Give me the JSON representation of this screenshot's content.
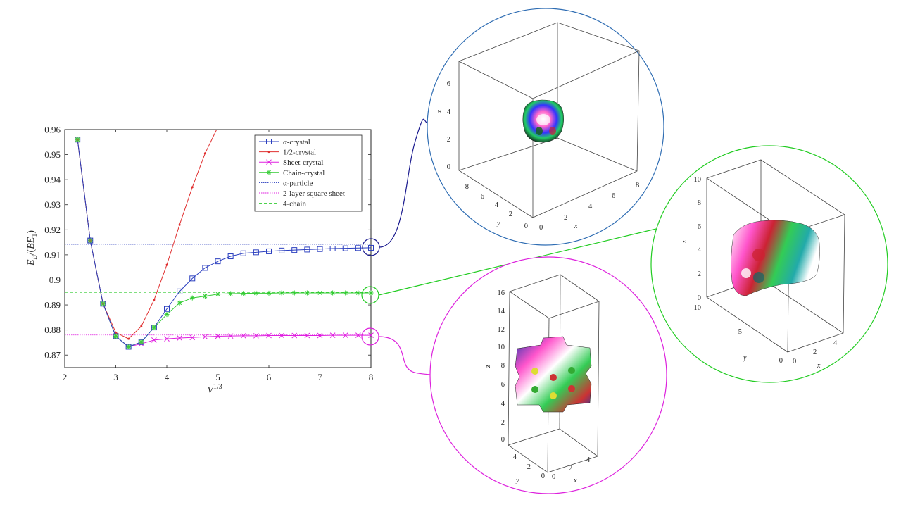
{
  "chart_data": {
    "type": "line",
    "xlabel": "V^{1/3}",
    "ylabel": "E_B/(BE_1)",
    "xlim": [
      2,
      8
    ],
    "ylim": [
      0.865,
      0.96
    ],
    "xticks": [
      "2",
      "3",
      "4",
      "5",
      "6",
      "7",
      "8"
    ],
    "yticks": [
      "0.87",
      "0.88",
      "0.89",
      "0.9",
      "0.91",
      "0.92",
      "0.93",
      "0.94",
      "0.95",
      "0.96"
    ],
    "grid": false,
    "legend_position": "top-right",
    "series": [
      {
        "name": "α-crystal",
        "color": "#2b3fbf",
        "marker": "square",
        "x": [
          2.25,
          2.5,
          2.75,
          3,
          3.25,
          3.5,
          3.75,
          4,
          4.25,
          4.5,
          4.75,
          5,
          5.25,
          5.5,
          5.75,
          6,
          6.25,
          6.5,
          6.75,
          7,
          7.25,
          7.5,
          7.75,
          8
        ],
        "y": [
          0.956,
          0.9157,
          0.8905,
          0.8775,
          0.8733,
          0.8752,
          0.881,
          0.8884,
          0.8954,
          0.9006,
          0.9048,
          0.9074,
          0.9094,
          0.9106,
          0.911,
          0.9114,
          0.9117,
          0.9119,
          0.9121,
          0.9123,
          0.9125,
          0.9126,
          0.9127,
          0.9128
        ]
      },
      {
        "name": "1/2-crystal",
        "color": "#e03030",
        "marker": "dot",
        "x": [
          2.25,
          2.5,
          2.75,
          3,
          3.25,
          3.5,
          3.75,
          4,
          4.25,
          4.5,
          4.75,
          5
        ],
        "y": [
          0.956,
          0.9157,
          0.8905,
          0.879,
          0.8765,
          0.8815,
          0.892,
          0.906,
          0.922,
          0.937,
          0.9505,
          0.961
        ]
      },
      {
        "name": "Sheet-crystal",
        "color": "#e020e0",
        "marker": "x",
        "x": [
          2.25,
          2.5,
          2.75,
          3,
          3.25,
          3.5,
          3.75,
          4,
          4.25,
          4.5,
          4.75,
          5,
          5.25,
          5.5,
          5.75,
          6,
          6.25,
          6.5,
          6.75,
          7,
          7.25,
          7.5,
          7.75,
          8
        ],
        "y": [
          0.956,
          0.9157,
          0.8905,
          0.8775,
          0.8733,
          0.8745,
          0.876,
          0.8765,
          0.8768,
          0.877,
          0.8773,
          0.8775,
          0.8776,
          0.8777,
          0.8777,
          0.8778,
          0.8778,
          0.8778,
          0.8778,
          0.8778,
          0.8779,
          0.8779,
          0.8779,
          0.8779
        ]
      },
      {
        "name": "Chain-crystal",
        "color": "#33cc33",
        "marker": "asterisk",
        "x": [
          2.25,
          2.5,
          2.75,
          3,
          3.25,
          3.5,
          3.75,
          4,
          4.25,
          4.5,
          4.75,
          5,
          5.25,
          5.5,
          5.75,
          6,
          6.25,
          6.5,
          6.75,
          7,
          7.25,
          7.5,
          7.75,
          8
        ],
        "y": [
          0.956,
          0.9157,
          0.8905,
          0.8775,
          0.8733,
          0.8752,
          0.881,
          0.8862,
          0.8908,
          0.8928,
          0.8935,
          0.8943,
          0.8945,
          0.8946,
          0.8947,
          0.8947,
          0.8948,
          0.8948,
          0.8948,
          0.8948,
          0.8948,
          0.8948,
          0.8948,
          0.8948
        ]
      },
      {
        "name": "α-particle",
        "color": "#2b3fbf",
        "style": "dotted",
        "y": 0.9142
      },
      {
        "name": "2-layer square sheet",
        "color": "#e020e0",
        "style": "dotted",
        "y": 0.878
      },
      {
        "name": "4-chain",
        "color": "#33cc33",
        "style": "dashed",
        "y": 0.895
      }
    ]
  },
  "insets": [
    {
      "id": "alpha",
      "border_color": "#2f6db3",
      "link_color": "#1a1a8f",
      "z_ticks": [
        "0",
        "2",
        "4",
        "6"
      ],
      "y_ticks": [
        "8",
        "6",
        "4",
        "2",
        "0"
      ],
      "x_ticks": [
        "0",
        "2",
        "4",
        "6",
        "8"
      ],
      "z_label": "z",
      "y_label": "y",
      "x_label": "x"
    },
    {
      "id": "chain",
      "border_color": "#22cc22",
      "link_color": "#22cc22",
      "z_ticks": [
        "0",
        "2",
        "4",
        "6",
        "8",
        "10"
      ],
      "y_ticks": [
        "10",
        "5",
        "0"
      ],
      "x_ticks": [
        "0",
        "2",
        "4"
      ],
      "z_label": "z",
      "y_label": "y",
      "x_label": "x"
    },
    {
      "id": "sheet",
      "border_color": "#dd22dd",
      "link_color": "#dd22dd",
      "z_ticks": [
        "0",
        "2",
        "4",
        "6",
        "8",
        "10",
        "12",
        "14",
        "16"
      ],
      "y_ticks": [
        "4",
        "2",
        "0"
      ],
      "x_ticks": [
        "0",
        "2",
        "4"
      ],
      "z_label": "z",
      "y_label": "y",
      "x_label": "x"
    }
  ]
}
